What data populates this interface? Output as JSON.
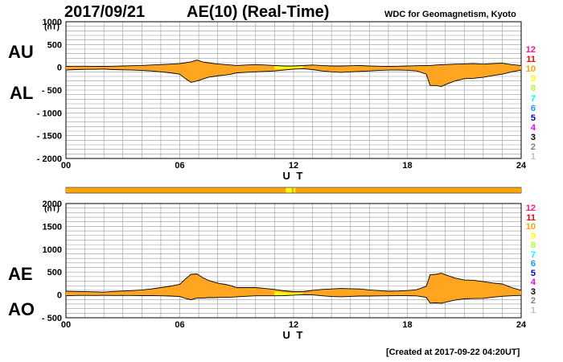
{
  "header": {
    "date": "2017/09/21",
    "title": "AE(10) (Real-Time)",
    "source": "WDC for Geomagnetism, Kyoto"
  },
  "footer": {
    "created": "[Created at 2017-09-22 04:20UT]"
  },
  "labels": {
    "au": "AU",
    "al": "AL",
    "ae": "AE",
    "ao": "AO"
  },
  "level_legend": [
    {
      "label": "12",
      "color": "#ff1493"
    },
    {
      "label": "11",
      "color": "#ff0000"
    },
    {
      "label": "10",
      "color": "#ffa500"
    },
    {
      "label": "9",
      "color": "#ffff00"
    },
    {
      "label": "8",
      "color": "#adff2f"
    },
    {
      "label": "7",
      "color": "#00ffff"
    },
    {
      "label": "6",
      "color": "#1e90ff"
    },
    {
      "label": "5",
      "color": "#0000cd"
    },
    {
      "label": "4",
      "color": "#ee00ee"
    },
    {
      "label": "3",
      "color": "#000000"
    },
    {
      "label": "2",
      "color": "#808080"
    },
    {
      "label": "1",
      "color": "#c0c0c0"
    }
  ],
  "colors": {
    "fill": "#ffa520",
    "low_stations": "#ffff00",
    "grid": "#999999"
  },
  "chart_data": [
    {
      "id": "au_al",
      "type": "area",
      "title": "AU / AL",
      "xlabel": "U T",
      "ylabel": "(nT)",
      "xlim": [
        0,
        24
      ],
      "ylim": [
        -2000,
        1000
      ],
      "xticks": [
        "00",
        "06",
        "12",
        "18",
        "24"
      ],
      "yticks": [
        "1000",
        "500",
        "0",
        "- 500",
        "- 1000",
        "- 1500",
        "- 2000"
      ],
      "x": [
        0,
        0.5,
        1,
        1.5,
        2,
        2.5,
        3,
        3.5,
        4,
        4.5,
        5,
        5.5,
        6,
        6.3,
        6.6,
        6.9,
        7.2,
        7.5,
        7.8,
        8.1,
        8.4,
        8.7,
        9,
        9.5,
        10,
        10.5,
        11,
        11.5,
        12,
        12.5,
        13,
        13.5,
        14,
        14.5,
        15,
        15.5,
        16,
        16.5,
        17,
        17.5,
        18,
        18.5,
        19,
        19.2,
        19.5,
        19.8,
        20,
        20.5,
        21,
        21.5,
        22,
        22.5,
        23,
        23.5,
        24
      ],
      "series": [
        {
          "name": "AU",
          "values": [
            20,
            25,
            25,
            22,
            20,
            25,
            30,
            35,
            40,
            50,
            60,
            70,
            80,
            100,
            120,
            160,
            120,
            100,
            80,
            70,
            60,
            50,
            40,
            50,
            60,
            50,
            40,
            30,
            30,
            40,
            50,
            40,
            30,
            30,
            35,
            40,
            30,
            25,
            20,
            25,
            30,
            35,
            40,
            40,
            50,
            55,
            60,
            70,
            75,
            80,
            70,
            80,
            90,
            60,
            40
          ]
        },
        {
          "name": "AL",
          "values": [
            -60,
            -50,
            -45,
            -45,
            -40,
            -50,
            -55,
            -60,
            -70,
            -80,
            -100,
            -120,
            -150,
            -250,
            -330,
            -300,
            -260,
            -220,
            -200,
            -180,
            -170,
            -150,
            -120,
            -110,
            -100,
            -90,
            -80,
            -60,
            -40,
            -30,
            -50,
            -80,
            -100,
            -110,
            -100,
            -90,
            -80,
            -70,
            -60,
            -60,
            -65,
            -80,
            -150,
            -400,
            -400,
            -420,
            -380,
            -300,
            -250,
            -240,
            -220,
            -180,
            -150,
            -100,
            -60
          ]
        }
      ]
    },
    {
      "id": "ae_ao",
      "type": "area",
      "title": "AE / AO",
      "xlabel": "U T",
      "ylabel": "(nT)",
      "xlim": [
        0,
        24
      ],
      "ylim": [
        -500,
        2000
      ],
      "xticks": [
        "00",
        "06",
        "12",
        "18",
        "24"
      ],
      "yticks": [
        "2000",
        "1500",
        "1000",
        "500",
        "0",
        "- 500"
      ],
      "x": [
        0,
        0.5,
        1,
        1.5,
        2,
        2.5,
        3,
        3.5,
        4,
        4.5,
        5,
        5.5,
        6,
        6.3,
        6.6,
        6.9,
        7.2,
        7.5,
        7.8,
        8.1,
        8.4,
        8.7,
        9,
        9.5,
        10,
        10.5,
        11,
        11.5,
        12,
        12.5,
        13,
        13.5,
        14,
        14.5,
        15,
        15.5,
        16,
        16.5,
        17,
        17.5,
        18,
        18.5,
        19,
        19.2,
        19.5,
        19.8,
        20,
        20.5,
        21,
        21.5,
        22,
        22.5,
        23,
        23.5,
        24
      ],
      "series": [
        {
          "name": "AE",
          "values": [
            80,
            75,
            70,
            67,
            60,
            75,
            85,
            95,
            110,
            130,
            160,
            190,
            230,
            350,
            450,
            460,
            380,
            320,
            280,
            250,
            230,
            200,
            160,
            160,
            160,
            140,
            120,
            90,
            70,
            70,
            100,
            120,
            130,
            140,
            135,
            130,
            110,
            95,
            80,
            85,
            95,
            115,
            190,
            440,
            450,
            475,
            440,
            370,
            325,
            320,
            290,
            260,
            240,
            160,
            100
          ]
        },
        {
          "name": "AO",
          "values": [
            -20,
            -12,
            -10,
            -12,
            -10,
            -12,
            -12,
            -12,
            -15,
            -15,
            -20,
            -25,
            -35,
            -75,
            -105,
            -70,
            -70,
            -60,
            -60,
            -55,
            -55,
            -50,
            -40,
            -30,
            -20,
            -20,
            -20,
            -15,
            -5,
            5,
            0,
            -20,
            -35,
            -40,
            -32,
            -25,
            -25,
            -22,
            -20,
            -18,
            -18,
            -22,
            -55,
            -180,
            -175,
            -182,
            -160,
            -115,
            -87,
            -80,
            -75,
            -50,
            -30,
            -20,
            -10
          ]
        }
      ]
    }
  ],
  "station_bar": {
    "segments": [
      {
        "from": 0,
        "to": 11.6,
        "level": "10"
      },
      {
        "from": 11.6,
        "to": 11.9,
        "level": "9"
      },
      {
        "from": 11.9,
        "to": 12.0,
        "level": "10"
      },
      {
        "from": 12.0,
        "to": 12.1,
        "level": "9"
      },
      {
        "from": 12.1,
        "to": 24,
        "level": "10"
      }
    ]
  }
}
